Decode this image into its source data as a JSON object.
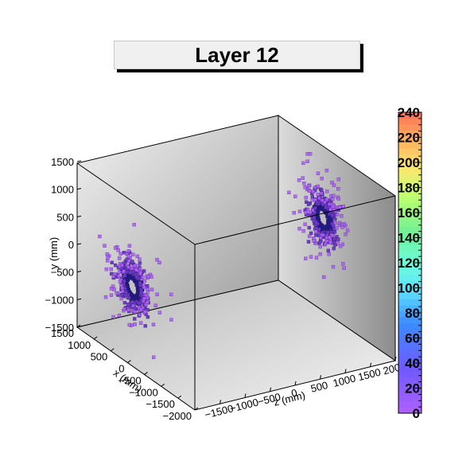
{
  "chart_data": {
    "type": "scatter",
    "title": "Layer 12",
    "xlabel": "x (mm)",
    "ylabel": "y (mm)",
    "zlabel": "z (mm)",
    "xlim": [
      -2000,
      1500
    ],
    "ylim": [
      -1500,
      1500
    ],
    "zlim": [
      -2000,
      2000
    ],
    "x_ticks": [
      "1500",
      "1000",
      "500",
      "0",
      "−500",
      "−1000",
      "−1500",
      "−2000"
    ],
    "y_ticks": [
      "1500",
      "1000",
      "500",
      "0",
      "−500",
      "−1000",
      "−1500"
    ],
    "z_ticks": [
      "−1500",
      "−1000",
      "−500",
      "0",
      "500",
      "1000",
      "1500",
      "2000"
    ],
    "colorbar": {
      "ticks": [
        "240",
        "220",
        "200",
        "180",
        "160",
        "140",
        "120",
        "100",
        "80",
        "60",
        "40",
        "20",
        "0"
      ],
      "min": 0,
      "max": 240
    },
    "clusters": [
      {
        "name": "",
        "z": -1900,
        "x_center": 0,
        "y_center": -150,
        "ring_radius_mm": 150,
        "spread_mm": 700
      },
      {
        "name": "",
        "z": 1900,
        "x_center": 0,
        "y_center": 250,
        "ring_radius_mm": 150,
        "spread_mm": 700
      }
    ],
    "grid": false,
    "colors": {
      "low": "#b060ff",
      "mid": "#6a3cc8",
      "high": "#1a1a8a",
      "box_left": "#d0d0d0",
      "box_back": "#a8a8a8",
      "box_floor": "#e0e0e0"
    }
  }
}
